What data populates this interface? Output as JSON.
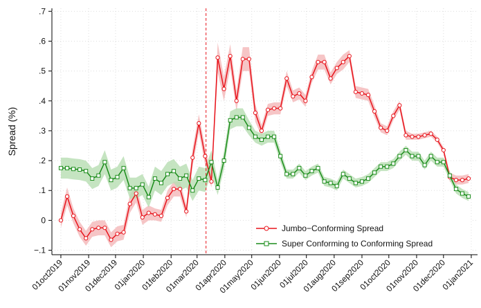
{
  "chart_data": {
    "type": "line",
    "ylabel": "Spread (%)",
    "x": [
      "2019-10-01",
      "2019-10-08",
      "2019-10-15",
      "2019-10-22",
      "2019-10-29",
      "2019-11-05",
      "2019-11-12",
      "2019-11-19",
      "2019-11-26",
      "2019-12-03",
      "2019-12-10",
      "2019-12-17",
      "2019-12-24",
      "2019-12-31",
      "2020-01-07",
      "2020-01-14",
      "2020-01-21",
      "2020-01-28",
      "2020-02-04",
      "2020-02-11",
      "2020-02-18",
      "2020-02-25",
      "2020-03-03",
      "2020-03-10",
      "2020-03-17",
      "2020-03-24",
      "2020-03-31",
      "2020-04-07",
      "2020-04-14",
      "2020-04-21",
      "2020-04-28",
      "2020-05-05",
      "2020-05-12",
      "2020-05-19",
      "2020-05-26",
      "2020-06-02",
      "2020-06-09",
      "2020-06-16",
      "2020-06-23",
      "2020-06-30",
      "2020-07-07",
      "2020-07-14",
      "2020-07-21",
      "2020-07-28",
      "2020-08-04",
      "2020-08-11",
      "2020-08-18",
      "2020-08-25",
      "2020-09-01",
      "2020-09-08",
      "2020-09-15",
      "2020-09-22",
      "2020-09-29",
      "2020-10-06",
      "2020-10-13",
      "2020-10-20",
      "2020-10-27",
      "2020-11-03",
      "2020-11-10",
      "2020-11-17",
      "2020-11-24",
      "2020-12-01",
      "2020-12-08",
      "2020-12-15",
      "2020-12-22",
      "2020-12-29"
    ],
    "series": [
      {
        "name": "Jumbo−Conforming Spread",
        "color": "#e8141c",
        "band_color": "#f4b6b8",
        "marker": "circle",
        "values": [
          0,
          0.08,
          0.015,
          -0.03,
          -0.06,
          -0.03,
          -0.025,
          -0.025,
          -0.065,
          -0.045,
          -0.04,
          0.055,
          0.09,
          0.01,
          0.025,
          0.02,
          0.015,
          0.075,
          0.105,
          0.105,
          0.03,
          0.21,
          0.325,
          0.215,
          0.13,
          0.545,
          0.44,
          0.55,
          0.4,
          0.54,
          0.54,
          0.36,
          0.3,
          0.37,
          0.375,
          0.375,
          0.475,
          0.415,
          0.425,
          0.4,
          0.48,
          0.53,
          0.53,
          0.475,
          0.51,
          0.53,
          0.55,
          0.43,
          0.425,
          0.42,
          0.365,
          0.31,
          0.3,
          0.35,
          0.385,
          0.285,
          0.28,
          0.28,
          0.285,
          0.29,
          0.27,
          0.235,
          0.145,
          0.135,
          0.135,
          0.14
        ],
        "errors": [
          0.025,
          0.03,
          0.025,
          0.025,
          0.025,
          0.025,
          0.025,
          0.025,
          0.025,
          0.025,
          0.025,
          0.03,
          0.03,
          0.025,
          0.025,
          0.02,
          0.02,
          0.025,
          0.025,
          0.025,
          0.02,
          0.03,
          0.03,
          0.03,
          0.02,
          0.05,
          0.04,
          0.04,
          0.035,
          0.04,
          0.04,
          0.03,
          0.02,
          0.02,
          0.02,
          0.02,
          0.025,
          0.02,
          0.02,
          0.02,
          0.02,
          0.025,
          0.025,
          0.02,
          0.02,
          0.025,
          0.02,
          0.02,
          0.02,
          0.02,
          0.02,
          0.015,
          0.015,
          0.015,
          0.015,
          0.015,
          0.01,
          0.01,
          0.01,
          0.01,
          0.01,
          0.01,
          0.015,
          0.015,
          0.015,
          0.015
        ]
      },
      {
        "name": "Super Conforming to Conforming Spread",
        "color": "#1a8c1a",
        "band_color": "#b7ddb2",
        "marker": "square",
        "values": [
          0.175,
          0.175,
          0.172,
          0.17,
          0.165,
          0.14,
          0.15,
          0.195,
          0.135,
          0.145,
          0.175,
          0.108,
          0.108,
          0.12,
          0.078,
          0.14,
          0.125,
          0.155,
          0.165,
          0.14,
          0.15,
          0.1,
          0.14,
          0.135,
          0.195,
          0.11,
          0.2,
          0.335,
          0.345,
          0.345,
          0.31,
          0.28,
          0.27,
          0.28,
          0.28,
          0.215,
          0.155,
          0.155,
          0.175,
          0.15,
          0.165,
          0.175,
          0.13,
          0.125,
          0.115,
          0.155,
          0.14,
          0.125,
          0.13,
          0.14,
          0.16,
          0.18,
          0.18,
          0.19,
          0.215,
          0.235,
          0.215,
          0.215,
          0.185,
          0.215,
          0.195,
          0.195,
          0.15,
          0.105,
          0.09,
          0.08
        ],
        "errors": [
          0.035,
          0.035,
          0.035,
          0.035,
          0.035,
          0.035,
          0.035,
          0.04,
          0.035,
          0.035,
          0.04,
          0.035,
          0.035,
          0.035,
          0.035,
          0.04,
          0.04,
          0.04,
          0.04,
          0.04,
          0.04,
          0.035,
          0.04,
          0.04,
          0.04,
          0.025,
          0.03,
          0.03,
          0.03,
          0.03,
          0.025,
          0.02,
          0.02,
          0.02,
          0.02,
          0.02,
          0.015,
          0.015,
          0.015,
          0.015,
          0.015,
          0.015,
          0.015,
          0.015,
          0.015,
          0.015,
          0.015,
          0.015,
          0.015,
          0.015,
          0.015,
          0.015,
          0.015,
          0.015,
          0.015,
          0.015,
          0.015,
          0.015,
          0.015,
          0.015,
          0.015,
          0.015,
          0.015,
          0.015,
          0.015,
          0.015
        ]
      }
    ],
    "vline": "2020-03-11",
    "vline_color": "#e8141c",
    "xlim": [
      "2019-09-21",
      "2021-01-08"
    ],
    "xticks": [
      {
        "value": "2019-10-01",
        "label": "01oct2019"
      },
      {
        "value": "2019-11-01",
        "label": "01nov2019"
      },
      {
        "value": "2019-12-01",
        "label": "01dec2019"
      },
      {
        "value": "2020-01-01",
        "label": "01jan2020"
      },
      {
        "value": "2020-02-01",
        "label": "01feb2020"
      },
      {
        "value": "2020-03-01",
        "label": "01mar2020"
      },
      {
        "value": "2020-04-01",
        "label": "01apr2020"
      },
      {
        "value": "2020-05-01",
        "label": "01may2020"
      },
      {
        "value": "2020-06-01",
        "label": "01jun2020"
      },
      {
        "value": "2020-07-01",
        "label": "01jul2020"
      },
      {
        "value": "2020-08-01",
        "label": "01aug2020"
      },
      {
        "value": "2020-09-01",
        "label": "01sep2020"
      },
      {
        "value": "2020-10-01",
        "label": "01oct2020"
      },
      {
        "value": "2020-11-01",
        "label": "01nov2020"
      },
      {
        "value": "2020-12-01",
        "label": "01dec2020"
      },
      {
        "value": "2021-01-01",
        "label": "01jan2021"
      }
    ],
    "ylim": [
      -0.115,
      0.71
    ],
    "yticks": [
      {
        "value": -0.1,
        "label": "−.1"
      },
      0,
      {
        "value": 0.1,
        "label": ".1"
      },
      {
        "value": 0.2,
        "label": ".2"
      },
      {
        "value": 0.3,
        "label": ".3"
      },
      {
        "value": 0.4,
        "label": ".4"
      },
      {
        "value": 0.5,
        "label": ".5"
      },
      {
        "value": 0.6,
        "label": ".6"
      },
      {
        "value": 0.7,
        "label": ".7"
      }
    ],
    "grid": true,
    "legend": "lower right"
  }
}
